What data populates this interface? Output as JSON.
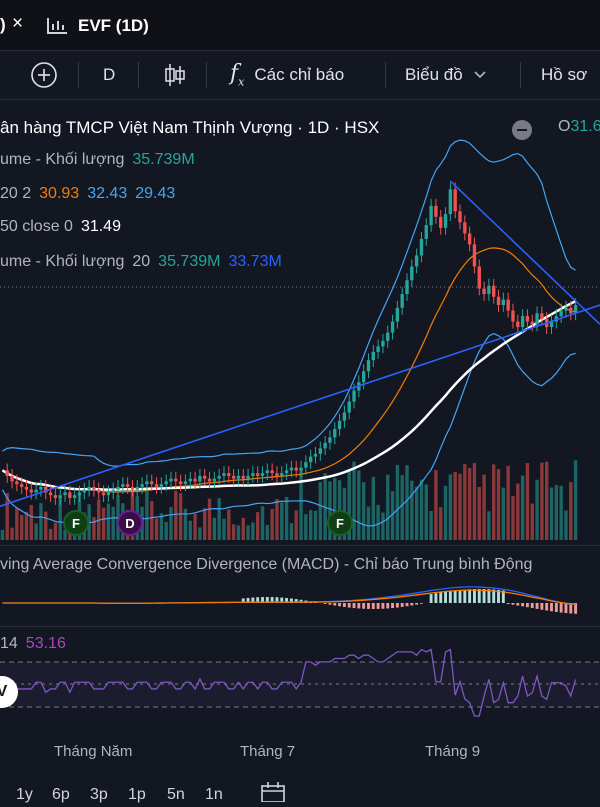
{
  "tab": {
    "fragment": ")",
    "close": "×",
    "title": "EVF (1D)"
  },
  "toolbar": {
    "interval": "D",
    "indicators_label": "Các chỉ báo",
    "chart_type_label": "Biểu đồ",
    "profile_label": "Hồ sơ"
  },
  "legend": {
    "title": "ân hàng TMCP Việt Nam Thịnh Vượng · 1D · HSX",
    "o_label": "O",
    "o_value": "31.6",
    "vol1_name": "ume - Khối lượng",
    "vol1_value": "35.739M",
    "bb_params": "20 2",
    "bb_mid": "30.93",
    "bb_up": "32.43",
    "bb_low": "29.43",
    "ma_params": "50 close 0",
    "ma_value": "31.49",
    "vol2_name": "ume - Khối lượng",
    "vol2_param": "20",
    "vol2_value": "35.739M",
    "vol2_ma": "33.73M"
  },
  "macd": {
    "title": "ving Average Convergence Divergence (MACD) - Chỉ báo Trung bình Động"
  },
  "rsi": {
    "param": "14",
    "value": "53.16"
  },
  "events": [
    "F",
    "D",
    "F"
  ],
  "xaxis": [
    "Tháng Năm",
    "Tháng 7",
    "Tháng 9"
  ],
  "ranges": [
    "1y",
    "6p",
    "3p",
    "1p",
    "5n",
    "1n"
  ],
  "colors": {
    "up": "#26a69a",
    "down": "#ef5350",
    "bb": "#42a5f5",
    "mid": "#f57c00",
    "ma": "#ffffff",
    "trend": "#2962ff",
    "rsi": "#7e57c2"
  },
  "chart_data": {
    "type": "candlestick",
    "price_series": [
      25.6,
      25.4,
      25.2,
      25.1,
      25.0,
      24.9,
      24.8,
      24.9,
      25.0,
      24.8,
      24.7,
      24.6,
      24.7,
      24.8,
      24.6,
      24.7,
      24.8,
      24.9,
      25.0,
      24.9,
      24.8,
      24.7,
      24.8,
      24.9,
      25.0,
      25.1,
      25.0,
      24.9,
      25.0,
      25.1,
      25.2,
      25.1,
      25.0,
      25.1,
      25.2,
      25.3,
      25.2,
      25.1,
      25.2,
      25.3,
      25.2,
      25.4,
      25.3,
      25.2,
      25.3,
      25.4,
      25.5,
      25.4,
      25.3,
      25.4,
      25.3,
      25.4,
      25.5,
      25.4,
      25.5,
      25.6,
      25.5,
      25.4,
      25.5,
      25.6,
      25.7,
      25.6,
      25.7,
      25.9,
      26.1,
      26.2,
      26.4,
      26.6,
      26.8,
      27.1,
      27.4,
      27.7,
      28.1,
      28.5,
      28.8,
      29.2,
      29.6,
      29.9,
      30.1,
      30.3,
      30.6,
      31.0,
      31.5,
      32.0,
      32.5,
      33.0,
      33.4,
      34.0,
      34.5,
      35.2,
      34.8,
      34.4,
      34.9,
      35.8,
      35.0,
      34.6,
      34.2,
      33.8,
      33.0,
      32.2,
      32.0,
      32.3,
      31.9,
      31.6,
      31.8,
      31.4,
      31.0,
      30.8,
      31.2,
      31.0,
      30.9,
      31.3,
      31.1,
      30.8,
      31.0,
      31.2,
      31.4,
      31.5,
      31.3,
      31.6
    ],
    "ma50_last": 31.49,
    "bollinger": {
      "mid": 30.93,
      "upper": 32.43,
      "lower": 29.43
    },
    "volume_ma": "33.73M",
    "rsi_last": 53.16
  }
}
